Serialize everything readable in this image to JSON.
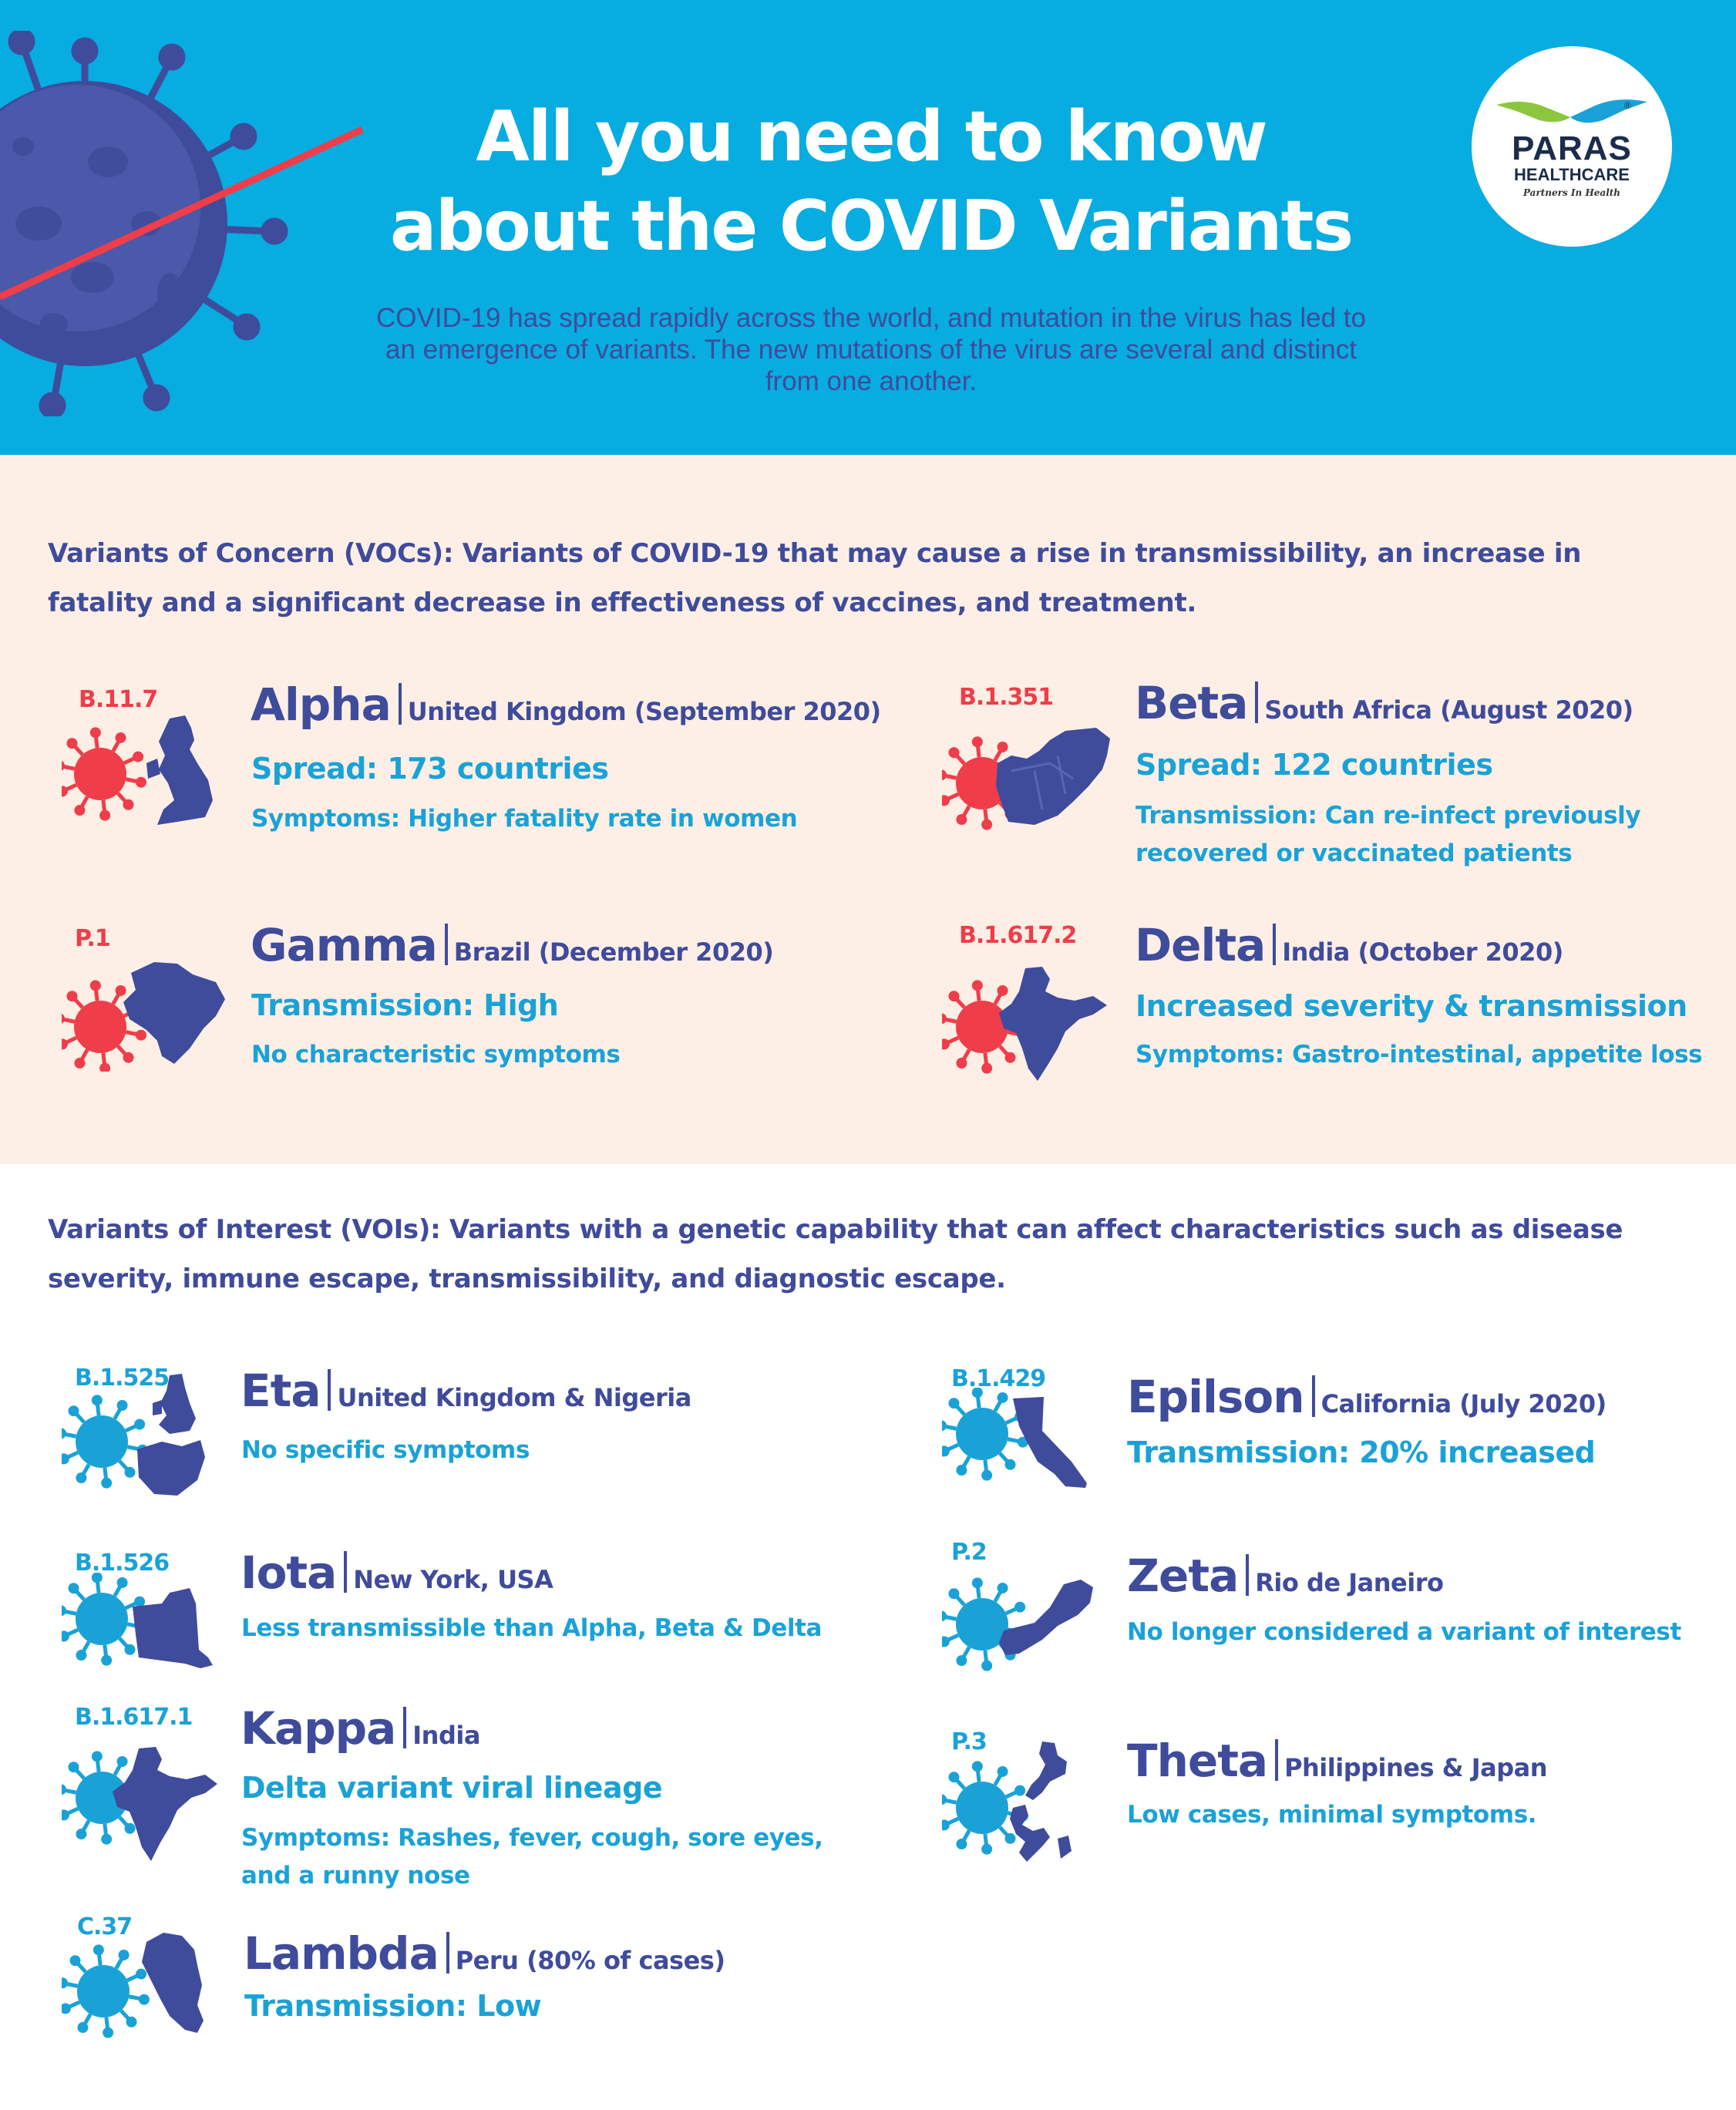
{
  "header": {
    "title_line1": "All you need to know",
    "title_line2": "about the COVID Variants",
    "intro": "COVID-19 has spread rapidly across the world, and mutation in the virus has led to an emergence of variants. The new mutations of the virus are several and distinct from one another.",
    "logo": {
      "brand_line1": "PARAS",
      "brand_line2": "HEALTHCARE",
      "tagline": "Partners In Health",
      "reg": "®"
    }
  },
  "colors": {
    "header_bg": "#07ace1",
    "voc_bg": "#fdefe5",
    "navy": "#3f4b9b",
    "cyan": "#1aa2d7",
    "red": "#ef3d49"
  },
  "voc": {
    "heading": "Variants of Concern (VOCs): Variants of COVID-19 that may cause a rise in transmissibility, an increase in fatality and a significant decrease in effectiveness of vaccines, and treatment.",
    "variants": [
      {
        "code": "B.11.7",
        "name": "Alpha",
        "location": "United Kingdom (September 2020)",
        "line1": "Spread: 173 countries",
        "line2": "Symptoms: Higher fatality rate in women",
        "icon": "virus-icon united-kingdom-map-icon"
      },
      {
        "code": "B.1.351",
        "name": "Beta",
        "location": "South Africa (August 2020)",
        "line1": "Spread: 122 countries",
        "line2": "Transmission: Can re-infect previously recovered or vaccinated patients",
        "icon": "virus-icon south-africa-map-icon"
      },
      {
        "code": "P.1",
        "name": "Gamma",
        "location": "Brazil (December 2020)",
        "line1": "Transmission: High",
        "line2": "No characteristic symptoms",
        "icon": "virus-icon brazil-map-icon"
      },
      {
        "code": "B.1.617.2",
        "name": "Delta",
        "location": "India (October 2020)",
        "line1": "Increased severity & transmission",
        "line2": "Symptoms: Gastro-intestinal, appetite loss",
        "icon": "virus-icon india-map-icon"
      }
    ]
  },
  "voi": {
    "heading": "Variants of Interest (VOIs): Variants with a genetic capability that can affect characteristics such as disease severity, immune escape, transmissibility, and diagnostic escape.",
    "variants": [
      {
        "code": "B.1.525",
        "name": "Eta",
        "location": "United Kingdom & Nigeria",
        "line1": "No specific symptoms",
        "icon": "virus-icon uk-nigeria-map-icon"
      },
      {
        "code": "B.1.429",
        "name": "Epilson",
        "location": "California (July 2020)",
        "line1": "Transmission: 20% increased",
        "icon": "virus-icon california-map-icon"
      },
      {
        "code": "B.1.526",
        "name": "Iota",
        "location": "New York, USA",
        "line1": "Less transmissible than Alpha, Beta & Delta",
        "icon": "virus-icon new-york-map-icon"
      },
      {
        "code": "P.2",
        "name": "Zeta",
        "location": "Rio de Janeiro",
        "line1": "No longer considered a variant of interest",
        "icon": "virus-icon rio-map-icon"
      },
      {
        "code": "B.1.617.1",
        "name": "Kappa",
        "location": "India",
        "line1": "Delta variant viral lineage",
        "line2": "Symptoms: Rashes, fever, cough, sore eyes, and a runny nose",
        "icon": "virus-icon india-map-icon"
      },
      {
        "code": "P.3",
        "name": "Theta",
        "location": "Philippines & Japan",
        "line1": "Low cases, minimal symptoms.",
        "icon": "virus-icon philippines-japan-map-icon"
      },
      {
        "code": "C.37",
        "name": "Lambda",
        "location": "Peru (80% of cases)",
        "line1": "Transmission: Low",
        "icon": "virus-icon peru-map-icon"
      }
    ]
  }
}
